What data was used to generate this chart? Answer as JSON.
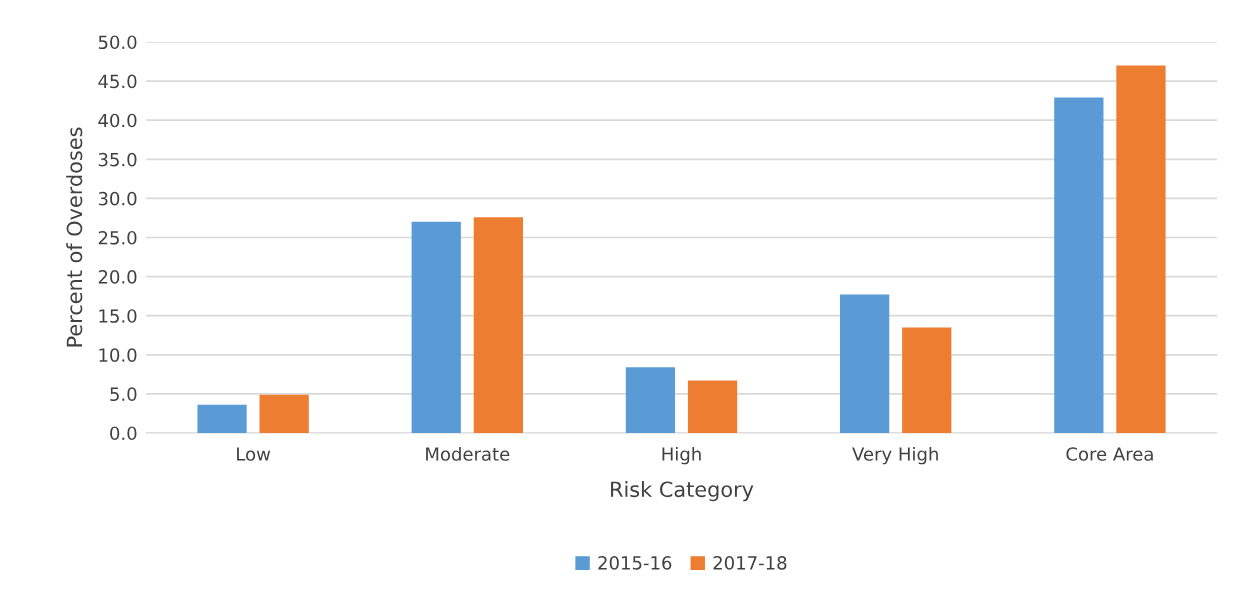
{
  "chart_data": {
    "type": "bar",
    "xlabel": "Risk Category",
    "ylabel": "Percent of Overdoses",
    "categories": [
      "Low",
      "Moderate",
      "High",
      "Very High",
      "Core Area"
    ],
    "series": [
      {
        "name": "2015-16",
        "color": "#5b9bd5",
        "values": [
          3.6,
          27.0,
          8.4,
          17.7,
          42.9
        ]
      },
      {
        "name": "2017-18",
        "color": "#ed7d31",
        "values": [
          4.9,
          27.6,
          6.7,
          13.5,
          47.0
        ]
      }
    ],
    "ylim": [
      0,
      50
    ],
    "yticks": [
      {
        "value": 0,
        "label": "0.0"
      },
      {
        "value": 5,
        "label": "5.0"
      },
      {
        "value": 10,
        "label": "10.0"
      },
      {
        "value": 15,
        "label": "15.0"
      },
      {
        "value": 20,
        "label": "20.0"
      },
      {
        "value": 25,
        "label": "25.0"
      },
      {
        "value": 30,
        "label": "30.0"
      },
      {
        "value": 35,
        "label": "35.0"
      },
      {
        "value": 40,
        "label": "40.0"
      },
      {
        "value": 45,
        "label": "45.0"
      },
      {
        "value": 50,
        "label": "50.0"
      }
    ],
    "grid": "y",
    "legend": "bottom"
  }
}
